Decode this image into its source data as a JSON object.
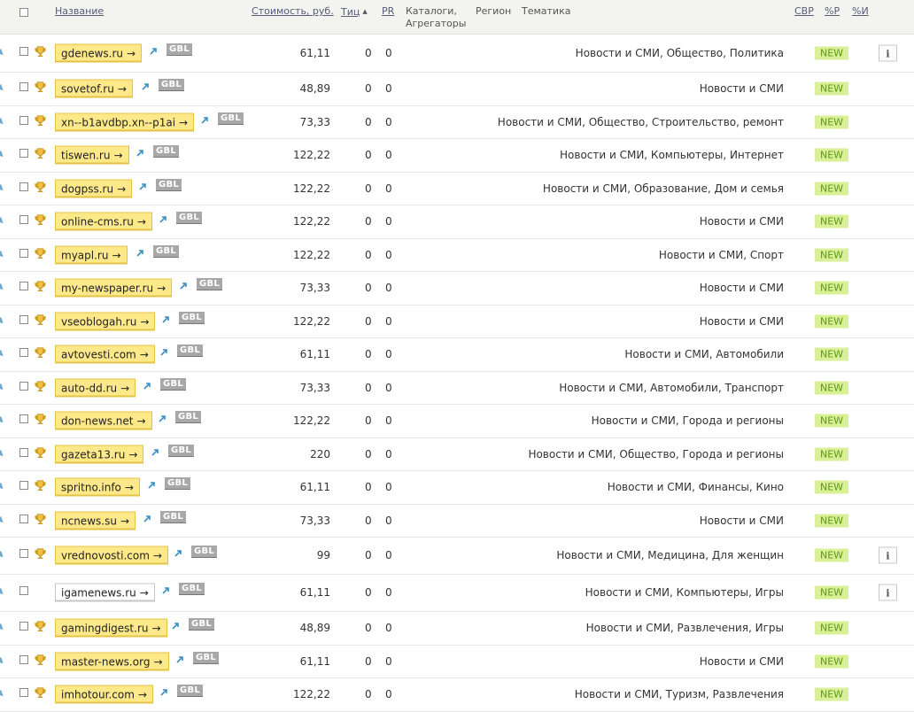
{
  "header": {
    "name": "Название",
    "price": "Стоимость, руб.",
    "tic": "Тиц",
    "tic_sort": "▲",
    "pr": "PR",
    "catalogs_line1": "Каталоги,",
    "catalogs_line2": "Агрегаторы",
    "region": "Регион",
    "theme": "Тематика",
    "cvr": "СВР",
    "pct_p": "%P",
    "pct_i": "%И"
  },
  "new_label": "NEW",
  "info_label": "i",
  "gbl_label": "GBL",
  "arrow": "→",
  "colors": {
    "site_bg": "#fde98a",
    "new_bg": "#d9ef98",
    "new_text": "#5d9a12",
    "gbl_bg": "#a8a8a8"
  },
  "rows": [
    {
      "site": "gdenews.ru",
      "price": "61,11",
      "tic": "0",
      "pr": "0",
      "theme": "Новости и СМИ, Общество, Политика",
      "info": true,
      "trophy": true
    },
    {
      "site": "sovetof.ru",
      "price": "48,89",
      "tic": "0",
      "pr": "0",
      "theme": "Новости и СМИ",
      "info": false,
      "trophy": true
    },
    {
      "site": "xn--b1avdbp.xn--p1ai",
      "price": "73,33",
      "tic": "0",
      "pr": "0",
      "theme": "Новости и СМИ, Общество, Строительство, ремонт",
      "info": false,
      "trophy": true
    },
    {
      "site": "tiswen.ru",
      "price": "122,22",
      "tic": "0",
      "pr": "0",
      "theme": "Новости и СМИ, Компьютеры, Интернет",
      "info": false,
      "trophy": true
    },
    {
      "site": "dogpss.ru",
      "price": "122,22",
      "tic": "0",
      "pr": "0",
      "theme": "Новости и СМИ, Образование, Дом и семья",
      "info": false,
      "trophy": true
    },
    {
      "site": "online-cms.ru",
      "price": "122,22",
      "tic": "0",
      "pr": "0",
      "theme": "Новости и СМИ",
      "info": false,
      "trophy": true
    },
    {
      "site": "myapl.ru",
      "price": "122,22",
      "tic": "0",
      "pr": "0",
      "theme": "Новости и СМИ, Спорт",
      "info": false,
      "trophy": true
    },
    {
      "site": "my-newspaper.ru",
      "price": "73,33",
      "tic": "0",
      "pr": "0",
      "theme": "Новости и СМИ",
      "info": false,
      "trophy": true
    },
    {
      "site": "vseoblogah.ru",
      "price": "122,22",
      "tic": "0",
      "pr": "0",
      "theme": "Новости и СМИ",
      "info": false,
      "trophy": true
    },
    {
      "site": "avtovesti.com",
      "price": "61,11",
      "tic": "0",
      "pr": "0",
      "theme": "Новости и СМИ, Автомобили",
      "info": false,
      "trophy": true
    },
    {
      "site": "auto-dd.ru",
      "price": "73,33",
      "tic": "0",
      "pr": "0",
      "theme": "Новости и СМИ, Автомобили, Транспорт",
      "info": false,
      "trophy": true
    },
    {
      "site": "don-news.net",
      "price": "122,22",
      "tic": "0",
      "pr": "0",
      "theme": "Новости и СМИ, Города и регионы",
      "info": false,
      "trophy": true
    },
    {
      "site": "gazeta13.ru",
      "price": "220",
      "tic": "0",
      "pr": "0",
      "theme": "Новости и СМИ, Общество, Города и регионы",
      "info": false,
      "trophy": true
    },
    {
      "site": "spritno.info",
      "price": "61,11",
      "tic": "0",
      "pr": "0",
      "theme": "Новости и СМИ, Финансы, Кино",
      "info": false,
      "trophy": true
    },
    {
      "site": "ncnews.su",
      "price": "73,33",
      "tic": "0",
      "pr": "0",
      "theme": "Новости и СМИ",
      "info": false,
      "trophy": true
    },
    {
      "site": "vrednovosti.com",
      "price": "99",
      "tic": "0",
      "pr": "0",
      "theme": "Новости и СМИ, Медицина, Для женщин",
      "info": true,
      "trophy": true
    },
    {
      "site": "igamenews.ru",
      "price": "61,11",
      "tic": "0",
      "pr": "0",
      "theme": "Новости и СМИ, Компьютеры, Игры",
      "info": true,
      "trophy": false
    },
    {
      "site": "gamingdigest.ru",
      "price": "48,89",
      "tic": "0",
      "pr": "0",
      "theme": "Новости и СМИ, Развлечения, Игры",
      "info": false,
      "trophy": true
    },
    {
      "site": "master-news.org",
      "price": "61,11",
      "tic": "0",
      "pr": "0",
      "theme": "Новости и СМИ",
      "info": false,
      "trophy": true
    },
    {
      "site": "imhotour.com",
      "price": "122,22",
      "tic": "0",
      "pr": "0",
      "theme": "Новости и СМИ, Туризм, Развлечения",
      "info": false,
      "trophy": true
    }
  ]
}
